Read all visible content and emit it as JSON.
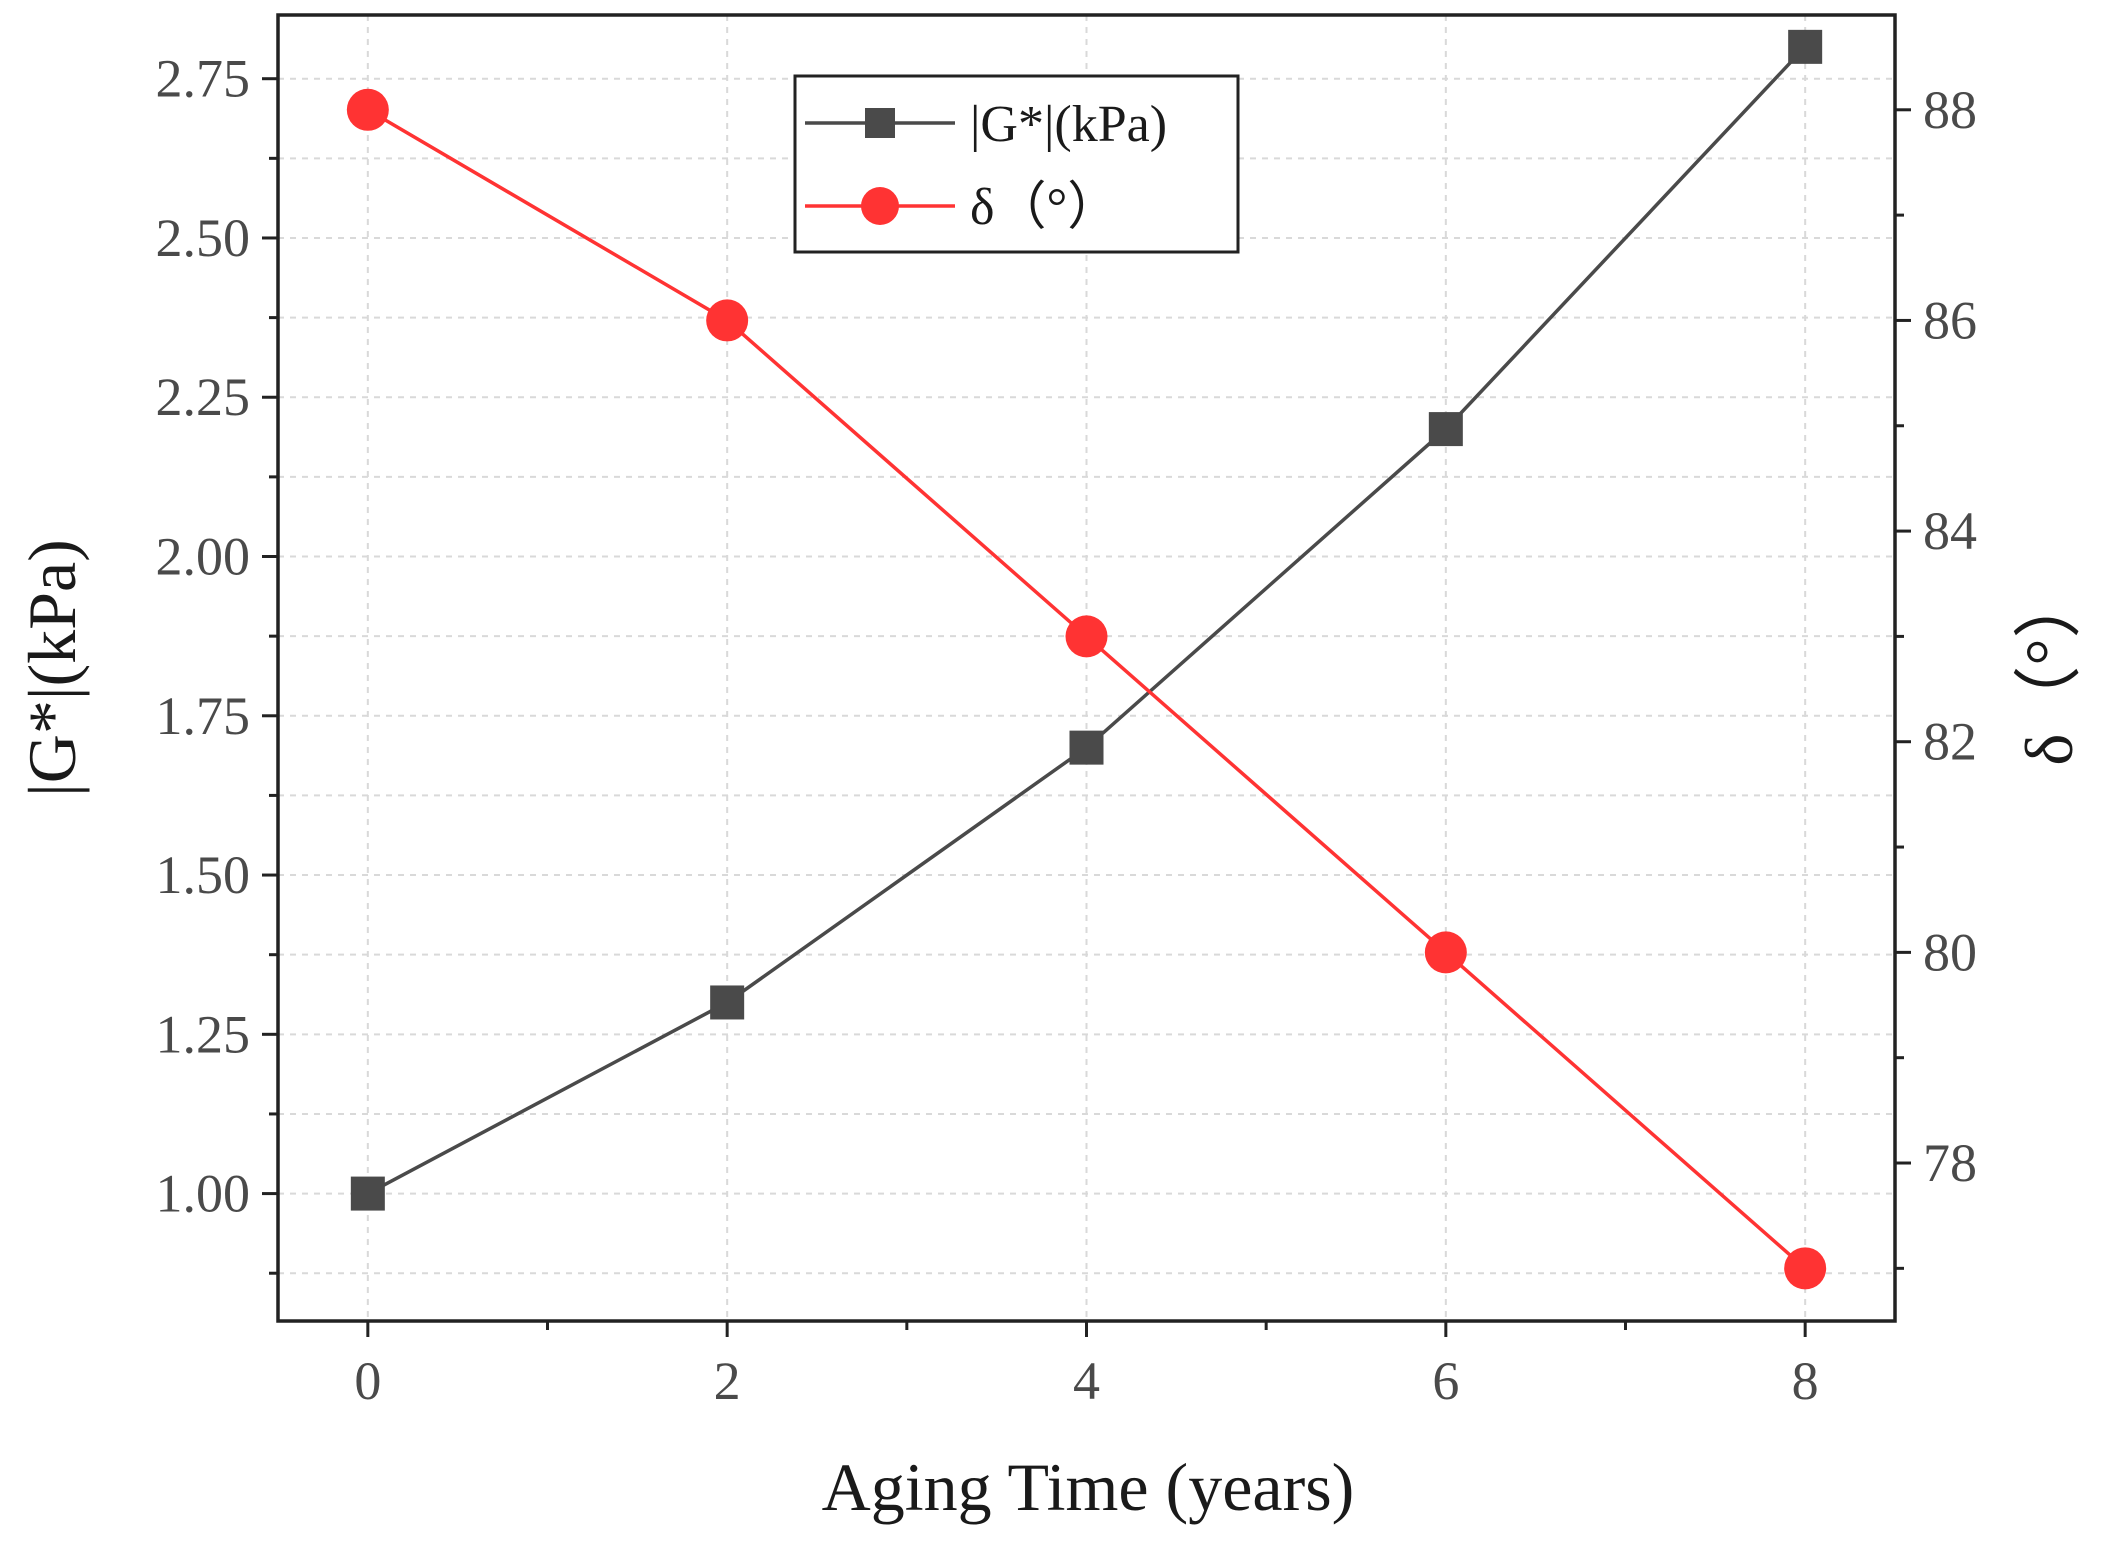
{
  "chart_data": {
    "type": "line",
    "xlabel": "Aging Time (years)",
    "ylabel": "|G*|(kPa)",
    "y2label": "δ（°）",
    "x": [
      0,
      2,
      4,
      6,
      8
    ],
    "xlim": [
      -0.5,
      8.5
    ],
    "ylim": [
      0.8,
      2.85
    ],
    "y2lim": [
      76.5,
      88.9
    ],
    "xticks": [
      "0",
      "2",
      "4",
      "6",
      "8"
    ],
    "yticks": [
      "1.00",
      "1.25",
      "1.50",
      "1.75",
      "2.00",
      "2.25",
      "2.50",
      "2.75"
    ],
    "y2ticks": [
      "78",
      "80",
      "82",
      "84",
      "86",
      "88"
    ],
    "grid": true,
    "legend_position": "top-center",
    "series": [
      {
        "name": "|G*|(kPa)",
        "axis": "left",
        "marker": "square",
        "color": "#4a4a4a",
        "values": [
          1.0,
          1.3,
          1.7,
          2.2,
          2.8
        ]
      },
      {
        "name": "δ（°）",
        "axis": "right",
        "marker": "circle",
        "color": "#ff3333",
        "values": [
          88,
          86,
          83,
          80,
          77
        ]
      }
    ]
  }
}
